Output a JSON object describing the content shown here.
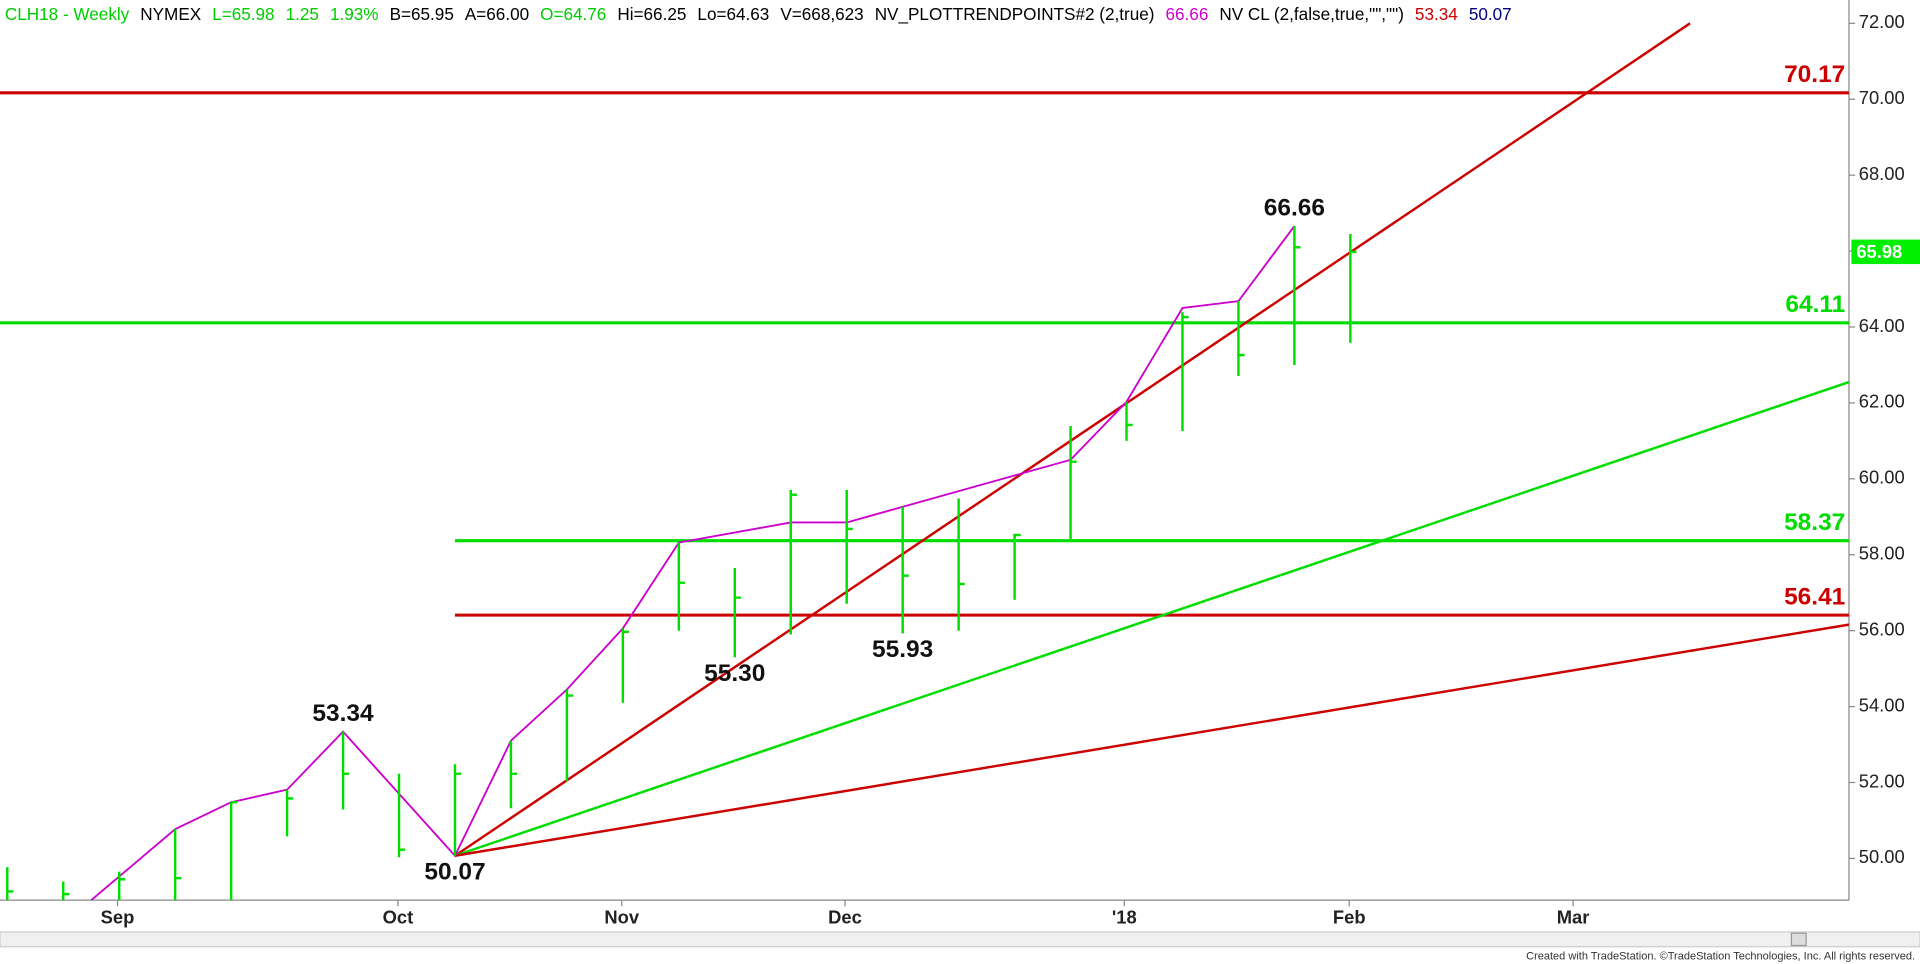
{
  "chart_data": {
    "type": "ohlc",
    "header": [
      {
        "text": "CLH18 - Weekly",
        "color": "#00cc00"
      },
      {
        "text": "NYMEX",
        "color": "#000000"
      },
      {
        "text": "L=65.98",
        "color": "#00cc00"
      },
      {
        "text": "1.25",
        "color": "#00cc00"
      },
      {
        "text": "1.93%",
        "color": "#00cc00"
      },
      {
        "text": "B=65.95",
        "color": "#000000"
      },
      {
        "text": "A=66.00",
        "color": "#000000"
      },
      {
        "text": "O=64.76",
        "color": "#00cc00"
      },
      {
        "text": "Hi=66.25",
        "color": "#000000"
      },
      {
        "text": "Lo=64.63",
        "color": "#000000"
      },
      {
        "text": "V=668,623",
        "color": "#000000"
      },
      {
        "text": "NV_PLOTTRENDPOINTS#2 (2,true)",
        "color": "#000000"
      },
      {
        "text": "66.66",
        "color": "#cc00cc"
      },
      {
        "text": "NV CL (2,false,true,\"\",\"\")",
        "color": "#000000"
      },
      {
        "text": "53.34",
        "color": "#cc0000"
      },
      {
        "text": "50.07",
        "color": "#000080"
      }
    ],
    "x": [
      0,
      1,
      2,
      3,
      4,
      5,
      6,
      7,
      8,
      9,
      10,
      11,
      12,
      13,
      14,
      15,
      16,
      17,
      18,
      19,
      20,
      21,
      22,
      23,
      24
    ],
    "high": [
      49.77,
      49.39,
      49.65,
      50.77,
      51.48,
      51.81,
      53.34,
      52.23,
      52.48,
      53.1,
      54.45,
      56.06,
      58.32,
      57.65,
      59.71,
      59.71,
      59.26,
      59.48,
      58.55,
      61.39,
      62.03,
      64.39,
      64.68,
      66.66,
      66.45
    ],
    "low": [
      48.9,
      48.9,
      48.9,
      48.9,
      48.9,
      50.58,
      51.29,
      50.03,
      50.07,
      51.32,
      52.03,
      54.1,
      56.0,
      55.3,
      55.9,
      56.71,
      55.93,
      56.0,
      56.81,
      58.39,
      61.0,
      61.26,
      62.71,
      63.0,
      63.58
    ],
    "close": [
      49.13,
      49.06,
      49.45,
      49.48,
      51.48,
      51.58,
      52.23,
      50.23,
      52.23,
      52.23,
      54.29,
      55.97,
      57.26,
      56.87,
      59.58,
      58.68,
      57.45,
      57.23,
      58.52,
      60.45,
      61.42,
      64.26,
      63.26,
      66.1,
      65.98
    ],
    "bar_color": "#00dd00",
    "trend_points": {
      "color": "#cc00cc",
      "x": [
        1.5,
        3,
        4,
        5,
        6,
        8,
        9,
        10,
        11,
        12,
        14,
        15,
        19,
        20,
        21,
        22,
        23
      ],
      "values": [
        48.9,
        50.77,
        51.48,
        51.81,
        53.34,
        50.07,
        53.1,
        54.45,
        56.06,
        58.32,
        58.85,
        58.85,
        60.5,
        62.03,
        64.5,
        64.68,
        66.66
      ]
    },
    "annotations": [
      {
        "x": 6,
        "value": 53.34,
        "position": "above"
      },
      {
        "x": 8,
        "value": 50.07,
        "position": "below"
      },
      {
        "x": 13,
        "value": 55.3,
        "position": "below",
        "label": "55.30"
      },
      {
        "x": 16,
        "value": 55.93,
        "position": "below"
      },
      {
        "x": 23,
        "value": 66.66,
        "position": "above"
      }
    ],
    "levels": [
      {
        "value": 70.17,
        "color": "#cc0000"
      },
      {
        "value": 64.11,
        "color": "#00dd00"
      },
      {
        "value": 58.37,
        "color": "#00dd00",
        "x_start": 8
      },
      {
        "value": 56.41,
        "color": "#cc0000",
        "x_start": 8
      }
    ],
    "rays": [
      {
        "x": [
          8,
          30.07
        ],
        "values": [
          50.07,
          72
        ],
        "color": "#cc0000"
      },
      {
        "x": [
          8,
          32.91
        ],
        "values": [
          50.07,
          62.55
        ],
        "color": "#00dd00"
      },
      {
        "x": [
          8,
          32.91
        ],
        "values": [
          50.07,
          56.16
        ],
        "color": "#cc0000"
      }
    ],
    "last_price": {
      "value": 65.98,
      "color": "#00ee00"
    },
    "xlim": [
      -0.13,
      32.91
    ],
    "ylim": [
      48.9,
      72.61
    ],
    "xticks": [
      {
        "value": 1.97,
        "label": "Sep"
      },
      {
        "value": 6.98,
        "label": "Oct"
      },
      {
        "value": 10.98,
        "label": "Nov"
      },
      {
        "value": 14.97,
        "label": "Dec"
      },
      {
        "value": 19.96,
        "label": "'18"
      },
      {
        "value": 23.98,
        "label": "Feb"
      },
      {
        "value": 27.98,
        "label": "Mar"
      }
    ],
    "yticks": [
      {
        "value": 50,
        "label": "50.00"
      },
      {
        "value": 52,
        "label": "52.00"
      },
      {
        "value": 54,
        "label": "54.00"
      },
      {
        "value": 56,
        "label": "56.00"
      },
      {
        "value": 58,
        "label": "58.00"
      },
      {
        "value": 60,
        "label": "60.00"
      },
      {
        "value": 62,
        "label": "62.00"
      },
      {
        "value": 64,
        "label": "64.00"
      },
      {
        "value": 66,
        "label": "66.00"
      },
      {
        "value": 68,
        "label": "68.00"
      },
      {
        "value": 70,
        "label": "70.00"
      },
      {
        "value": 72,
        "label": "72.00"
      }
    ]
  },
  "footer": "Created with TradeStation. ©TradeStation Technologies, Inc. All rights reserved."
}
